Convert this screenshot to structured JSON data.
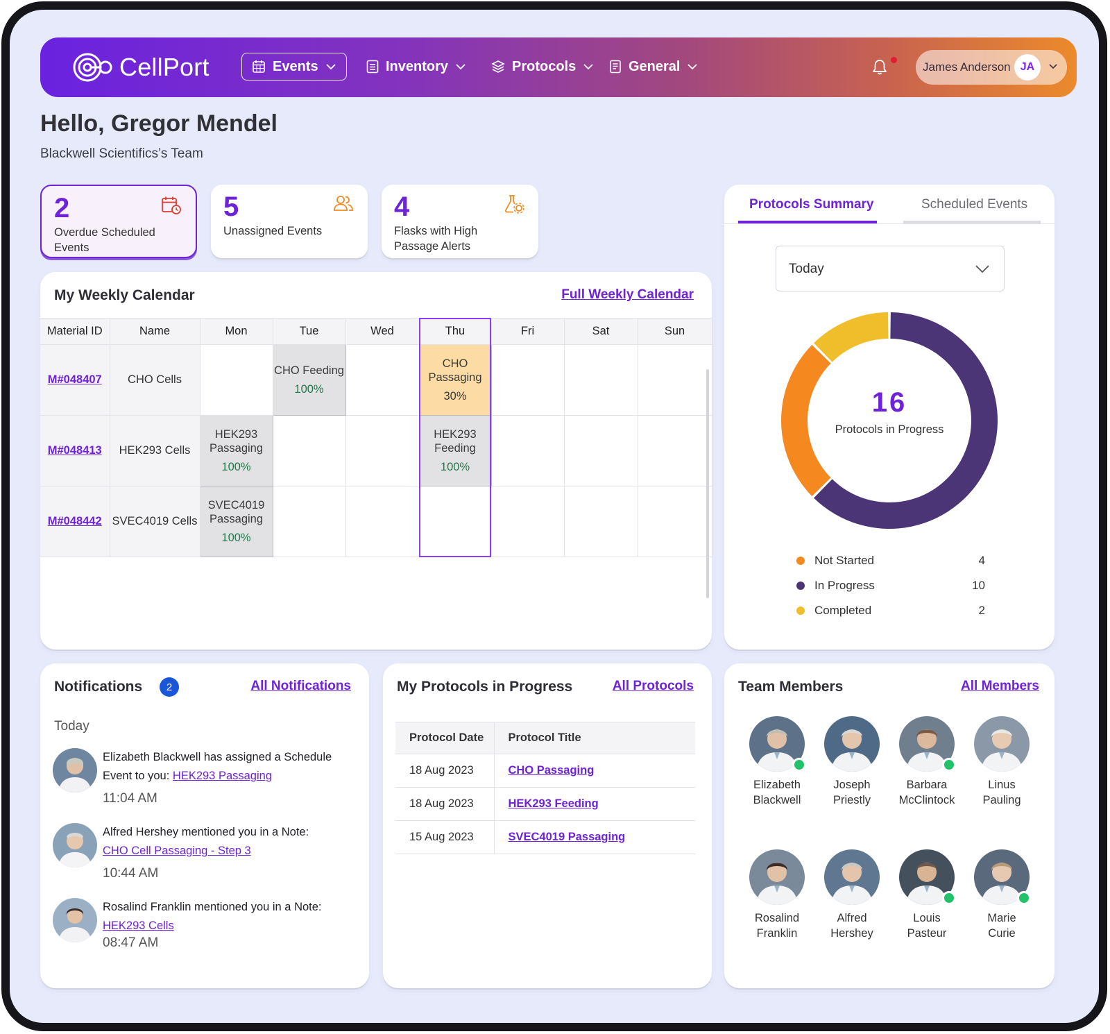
{
  "app": {
    "brand": "CellPort"
  },
  "nav": {
    "items": [
      {
        "label": "Events",
        "icon": "calendar-icon",
        "active": true
      },
      {
        "label": "Inventory",
        "icon": "list-icon",
        "active": false
      },
      {
        "label": "Protocols",
        "icon": "layers-icon",
        "active": false
      },
      {
        "label": "General",
        "icon": "document-icon",
        "active": false
      }
    ],
    "user": {
      "name": "James Anderson",
      "initials": "JA"
    }
  },
  "greeting": {
    "title": "Hello, Gregor Mendel",
    "team": "Blackwell Scientifics’s Team"
  },
  "stats": [
    {
      "value": "2",
      "label": "Overdue Scheduled Events",
      "icon": "calendar-clock-icon"
    },
    {
      "value": "5",
      "label": "Unassigned Events",
      "icon": "users-icon"
    },
    {
      "value": "4",
      "label": "Flasks with High Passage Alerts",
      "icon": "flask-gear-icon"
    }
  ],
  "calendar": {
    "title": "My Weekly Calendar",
    "link": "Full Weekly Calendar",
    "headers": [
      "Material ID",
      "Name",
      "Mon",
      "Tue",
      "Wed",
      "Thu",
      "Fri",
      "Sat",
      "Sun"
    ],
    "rows": [
      {
        "id": "M#048407",
        "name": "CHO Cells",
        "events": {
          "tue": {
            "name": "CHO Feeding",
            "pct": "100%"
          },
          "thu": {
            "name": "CHO Passaging",
            "pct": "30%"
          }
        }
      },
      {
        "id": "M#048413",
        "name": "HEK293 Cells",
        "events": {
          "mon": {
            "name": "HEK293 Passaging",
            "pct": "100%"
          },
          "thu": {
            "name": "HEK293 Feeding",
            "pct": "100%"
          }
        }
      },
      {
        "id": "M#048442",
        "name": "SVEC4019 Cells",
        "events": {
          "mon": {
            "name": "SVEC4019 Passaging",
            "pct": "100%"
          }
        }
      }
    ]
  },
  "summary": {
    "tabs": [
      "Protocols Summary",
      "Scheduled Events"
    ],
    "filter": "Today",
    "total": "16",
    "total_label": "Protocols in Progress",
    "colors": {
      "not_started": "#f5891f",
      "in_progress": "#4b3576",
      "completed": "#f0bd2b"
    },
    "legend": [
      {
        "label": "Not Started",
        "count": 4
      },
      {
        "label": "In Progress",
        "count": 10
      },
      {
        "label": "Completed",
        "count": 2
      }
    ]
  },
  "notifications": {
    "title": "Notifications",
    "count": "2",
    "link": "All Notifications",
    "group": "Today",
    "items": [
      {
        "text": "Elizabeth Blackwell has assigned a Schedule Event to you:",
        "link": "HEK293 Passaging",
        "time": "11:04 AM"
      },
      {
        "text": "Alfred Hershey mentioned you in a Note:",
        "link": "CHO Cell Passaging - Step 3",
        "time": "10:44 AM"
      },
      {
        "text": "Rosalind Franklin mentioned you in a Note:",
        "link": "HEK293 Cells",
        "time": "08:47 AM"
      }
    ]
  },
  "protocols": {
    "title": "My Protocols in Progress",
    "link": "All Protocols",
    "headers": [
      "Protocol Date",
      "Protocol Title"
    ],
    "rows": [
      {
        "date": "18 Aug 2023",
        "title": "CHO Passaging"
      },
      {
        "date": "18 Aug 2023",
        "title": "HEK293 Feeding"
      },
      {
        "date": "15 Aug 2023",
        "title": "SVEC4019 Passaging"
      }
    ]
  },
  "team": {
    "title": "Team Members",
    "link": "All Members",
    "members": [
      {
        "first": "Elizabeth",
        "last": "Blackwell",
        "online": true
      },
      {
        "first": "Joseph",
        "last": "Priestly",
        "online": false
      },
      {
        "first": "Barbara",
        "last": "McClintock",
        "online": true
      },
      {
        "first": "Linus",
        "last": "Pauling",
        "online": false
      },
      {
        "first": "Rosalind",
        "last": "Franklin",
        "online": false
      },
      {
        "first": "Alfred",
        "last": "Hershey",
        "online": false
      },
      {
        "first": "Louis",
        "last": "Pasteur",
        "online": true
      },
      {
        "first": "Marie",
        "last": "Curie",
        "online": true
      }
    ]
  }
}
